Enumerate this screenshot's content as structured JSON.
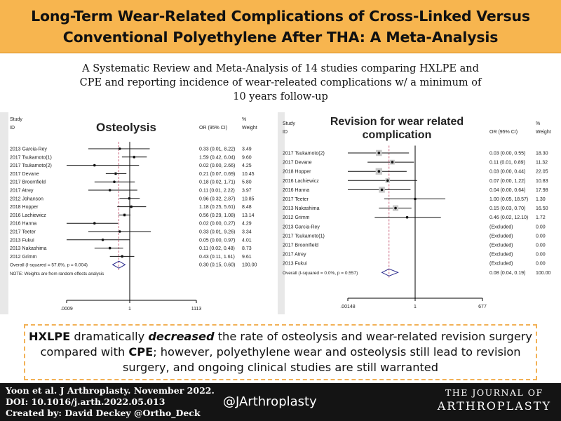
{
  "header": {
    "title_line1": "Long-Term Wear-Related Complications of Cross-Linked Versus",
    "title_line2": "Conventional Polyethylene After THA: A Meta-Analysis"
  },
  "subtitle": {
    "line1": "A Systematic Review and Meta-Analysis of 14 studies comparing HXLPE and",
    "line2": "CPE and reporting incidence of wear-releated complications w/ a minimum of",
    "line3": "10 years follow-up"
  },
  "colors": {
    "accent": "#f7b54f",
    "diamond": "#2a2a8c",
    "null_line": "#c04060",
    "footer": "#141414"
  },
  "chart_data": [
    {
      "type": "forest",
      "title": "Osteolysis",
      "col_study": "Study",
      "col_id": "ID",
      "col_or": "OR (95% CI)",
      "col_weight_pct": "%",
      "col_weight": "Weight",
      "scale": "log",
      "axis_ticks": [
        ".0009",
        "1",
        "1113"
      ],
      "axis_tick_values": [
        0.0009,
        1,
        1113
      ],
      "series": [
        {
          "study": "2013 Garcia-Rey",
          "or": 0.33,
          "lo": 0.01,
          "hi": 8.22,
          "or_text": "0.33 (0.01, 8.22)",
          "weight": "3.49"
        },
        {
          "study": "2017 Tsukamoto(1)",
          "or": 1.59,
          "lo": 0.42,
          "hi": 6.04,
          "or_text": "1.59 (0.42, 6.04)",
          "weight": "9.60"
        },
        {
          "study": "2017 Tsukamoto(2)",
          "or": 0.02,
          "lo": 0.0,
          "hi": 2.66,
          "or_text": "0.02 (0.00, 2.66)",
          "weight": "4.25"
        },
        {
          "study": "2017 Devane",
          "or": 0.21,
          "lo": 0.07,
          "hi": 0.69,
          "or_text": "0.21 (0.07, 0.69)",
          "weight": "10.45"
        },
        {
          "study": "2017 Broomfield",
          "or": 0.18,
          "lo": 0.02,
          "hi": 1.71,
          "or_text": "0.18 (0.02, 1.71)",
          "weight": "5.80"
        },
        {
          "study": "2017 Atrey",
          "or": 0.11,
          "lo": 0.01,
          "hi": 2.22,
          "or_text": "0.11 (0.01, 2.22)",
          "weight": "3.97"
        },
        {
          "study": "2012 Johanson",
          "or": 0.96,
          "lo": 0.32,
          "hi": 2.87,
          "or_text": "0.96 (0.32, 2.87)",
          "weight": "10.85"
        },
        {
          "study": "2018 Hopper",
          "or": 1.18,
          "lo": 0.25,
          "hi": 5.61,
          "or_text": "1.18 (0.25, 5.61)",
          "weight": "8.48"
        },
        {
          "study": "2016 Lachiewicz",
          "or": 0.56,
          "lo": 0.29,
          "hi": 1.08,
          "or_text": "0.56 (0.29, 1.08)",
          "weight": "13.14"
        },
        {
          "study": "2016 Hanna",
          "or": 0.02,
          "lo": 0.0,
          "hi": 0.27,
          "or_text": "0.02 (0.00, 0.27)",
          "weight": "4.29"
        },
        {
          "study": "2017 Teeter",
          "or": 0.33,
          "lo": 0.01,
          "hi": 9.26,
          "or_text": "0.33 (0.01, 9.26)",
          "weight": "3.34"
        },
        {
          "study": "2013 Fukui",
          "or": 0.05,
          "lo": 0.0,
          "hi": 0.97,
          "or_text": "0.05 (0.00, 0.97)",
          "weight": "4.01"
        },
        {
          "study": "2013 Nakashima",
          "or": 0.11,
          "lo": 0.02,
          "hi": 0.48,
          "or_text": "0.11 (0.02, 0.48)",
          "weight": "8.73"
        },
        {
          "study": "2012 Grimm",
          "or": 0.43,
          "lo": 0.11,
          "hi": 1.61,
          "or_text": "0.43 (0.11, 1.61)",
          "weight": "9.61"
        }
      ],
      "overall": {
        "label": "Overall  (I-squared = 57.6%, p = 0.004)",
        "or": 0.3,
        "lo": 0.15,
        "hi": 0.6,
        "or_text": "0.30 (0.15, 0.60)",
        "weight": "100.00"
      },
      "note": "NOTE: Weights are from random effects analysis"
    },
    {
      "type": "forest",
      "title": "Revision for wear related complication",
      "title_line1": "Revision for wear related",
      "title_line2": "complication",
      "col_study": "Study",
      "col_id": "ID",
      "col_or": "OR (95% CI)",
      "col_weight_pct": "%",
      "col_weight": "Weight",
      "scale": "log",
      "axis_ticks": [
        ".00148",
        "1",
        "677"
      ],
      "axis_tick_values": [
        0.00148,
        1,
        677
      ],
      "series": [
        {
          "study": "2017 Tsukamoto(2)",
          "or": 0.03,
          "lo": 0.0,
          "hi": 0.55,
          "or_text": "0.03 (0.00, 0.55)",
          "weight": "18.30"
        },
        {
          "study": "2017 Devane",
          "or": 0.11,
          "lo": 0.01,
          "hi": 0.89,
          "or_text": "0.11 (0.01, 0.89)",
          "weight": "11.32"
        },
        {
          "study": "2018 Hopper",
          "or": 0.03,
          "lo": 0.0,
          "hi": 0.44,
          "or_text": "0.03 (0.00, 0.44)",
          "weight": "22.05"
        },
        {
          "study": "2016 Lachiewicz",
          "or": 0.07,
          "lo": 0.0,
          "hi": 1.22,
          "or_text": "0.07 (0.00, 1.22)",
          "weight": "10.83"
        },
        {
          "study": "2016 Hanna",
          "or": 0.04,
          "lo": 0.0,
          "hi": 0.64,
          "or_text": "0.04 (0.00, 0.64)",
          "weight": "17.98"
        },
        {
          "study": "2017 Teeter",
          "or": 1.0,
          "lo": 0.05,
          "hi": 18.57,
          "or_text": "1.00 (0.05, 18.57)",
          "weight": "1.30"
        },
        {
          "study": "2013 Nakashima",
          "or": 0.15,
          "lo": 0.03,
          "hi": 0.7,
          "or_text": "0.15 (0.03, 0.70)",
          "weight": "16.50"
        },
        {
          "study": "2012 Grimm",
          "or": 0.46,
          "lo": 0.02,
          "hi": 12.1,
          "or_text": "0.46 (0.02, 12.10)",
          "weight": "1.72"
        },
        {
          "study": "2013 Garcia-Rey",
          "or": null,
          "or_text": "(Excluded)",
          "weight": "0.00"
        },
        {
          "study": "2017 Tsukamoto(1)",
          "or": null,
          "or_text": "(Excluded)",
          "weight": "0.00"
        },
        {
          "study": "2017 Broomfield",
          "or": null,
          "or_text": "(Excluded)",
          "weight": "0.00"
        },
        {
          "study": "2017 Atrey",
          "or": null,
          "or_text": "(Excluded)",
          "weight": "0.00"
        },
        {
          "study": "2013 Fukui",
          "or": null,
          "or_text": "(Excluded)",
          "weight": "0.00"
        }
      ],
      "overall": {
        "label": "Overall  (I-squared = 0.0%, p = 0.557)",
        "or": 0.08,
        "lo": 0.04,
        "hi": 0.19,
        "or_text": "0.08 (0.04, 0.19)",
        "weight": "100.00"
      }
    }
  ],
  "summary": {
    "t1": "HXLPE",
    "t2": " dramatically ",
    "t3": "decreased",
    "t4": " the rate of osteolysis and wear-related revision surgery compared with ",
    "t5": "CPE",
    "t6": "; however, polyethylene wear and osteolysis still lead to revision surgery, and ongoing clinical studies are still warranted"
  },
  "footer": {
    "citation_line1": "Yoon et al. J Arthroplasty. November 2022.",
    "citation_line2": "DOI: 10.1016/j.arth.2022.05.013",
    "citation_line3": "Created by: David Deckey @Ortho_Deck",
    "handle": "@JArthroplasty",
    "journal_line1": "THE JOURNAL OF",
    "journal_line2": "ARTHROPLASTY"
  }
}
